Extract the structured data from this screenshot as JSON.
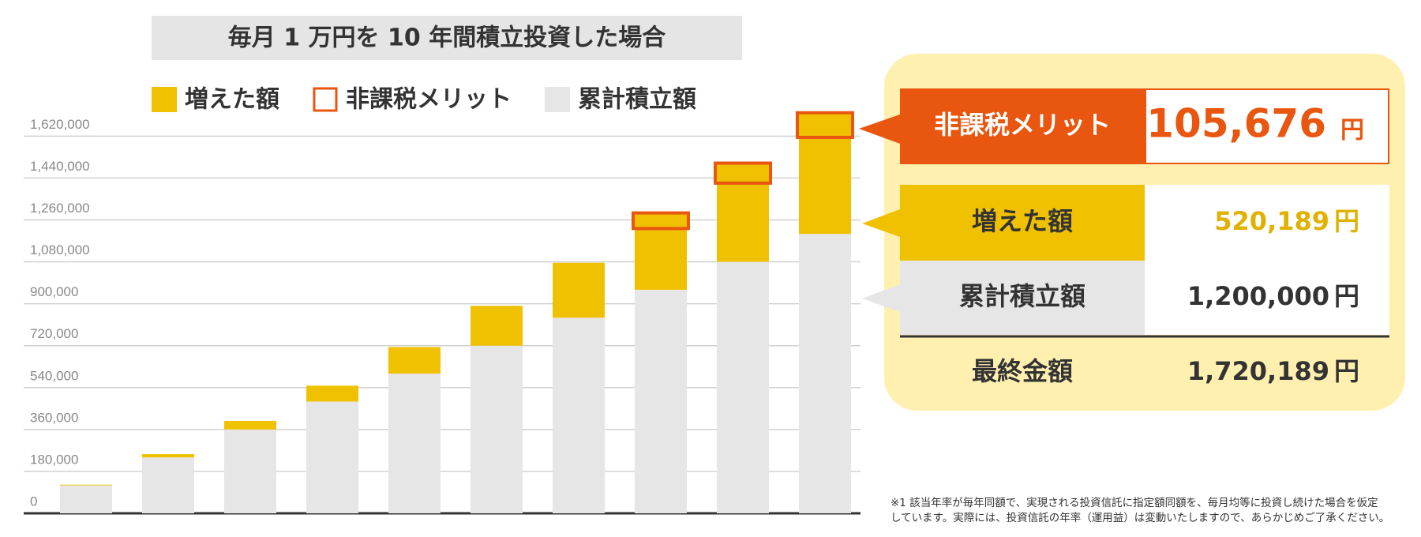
{
  "chart_data": {
    "type": "stacked-bar",
    "title": "毎月 1 万円を 10 年間積立投資した場合",
    "categories": [
      null,
      null,
      null,
      null,
      null,
      null,
      null,
      null,
      null,
      null
    ],
    "series": [
      {
        "name": "累計積立額",
        "color": "#e6e6e6",
        "values": [
          120000,
          240000,
          360000,
          480000,
          600000,
          720000,
          840000,
          960000,
          1080000,
          1200000
        ]
      },
      {
        "name": "増えた額",
        "color": "#efc100",
        "values": [
          3000,
          14000,
          37000,
          68000,
          114000,
          171000,
          236000,
          330000,
          424000,
          520189
        ]
      },
      {
        "name": "非課税メリット",
        "color": "#e8560f",
        "outline": true,
        "values": [
          null,
          null,
          null,
          null,
          null,
          null,
          null,
          67000,
          86000,
          105676
        ]
      }
    ],
    "legend_order": [
      1,
      2,
      0
    ],
    "ylim": [
      0,
      1750000
    ],
    "yticks": [
      0,
      {
        "value": 180000,
        "label": "180,000"
      },
      {
        "value": 360000,
        "label": "360,000"
      },
      {
        "value": 540000,
        "label": "540,000"
      },
      {
        "value": 720000,
        "label": "720,000"
      },
      {
        "value": 900000,
        "label": "900,000"
      },
      {
        "value": 1080000,
        "label": "1,080,000"
      },
      {
        "value": 1260000,
        "label": "1,260,000"
      },
      {
        "value": 1440000,
        "label": "1,440,000"
      },
      {
        "value": 1620000,
        "label": "1,620,000"
      }
    ],
    "grid": true
  },
  "summary": {
    "rows": [
      {
        "label": "非課税メリット",
        "value": "105,676",
        "unit": "円"
      },
      {
        "label": "増えた額",
        "value": "520,189",
        "unit": "円"
      },
      {
        "label": "累計積立額",
        "value": "1,200,000",
        "unit": "円"
      },
      {
        "label": "最終金額",
        "value": "1,720,189",
        "unit": "円"
      }
    ]
  },
  "footnote": [
    "※1 該当年率が毎年同額で、実現される投資信託に指定額同額を、毎月均等に投資し続けた場合を仮定",
    "しています。実際には、投資信託の年率（運用益）は変動いたしますので、あらかじめご了承ください。"
  ]
}
